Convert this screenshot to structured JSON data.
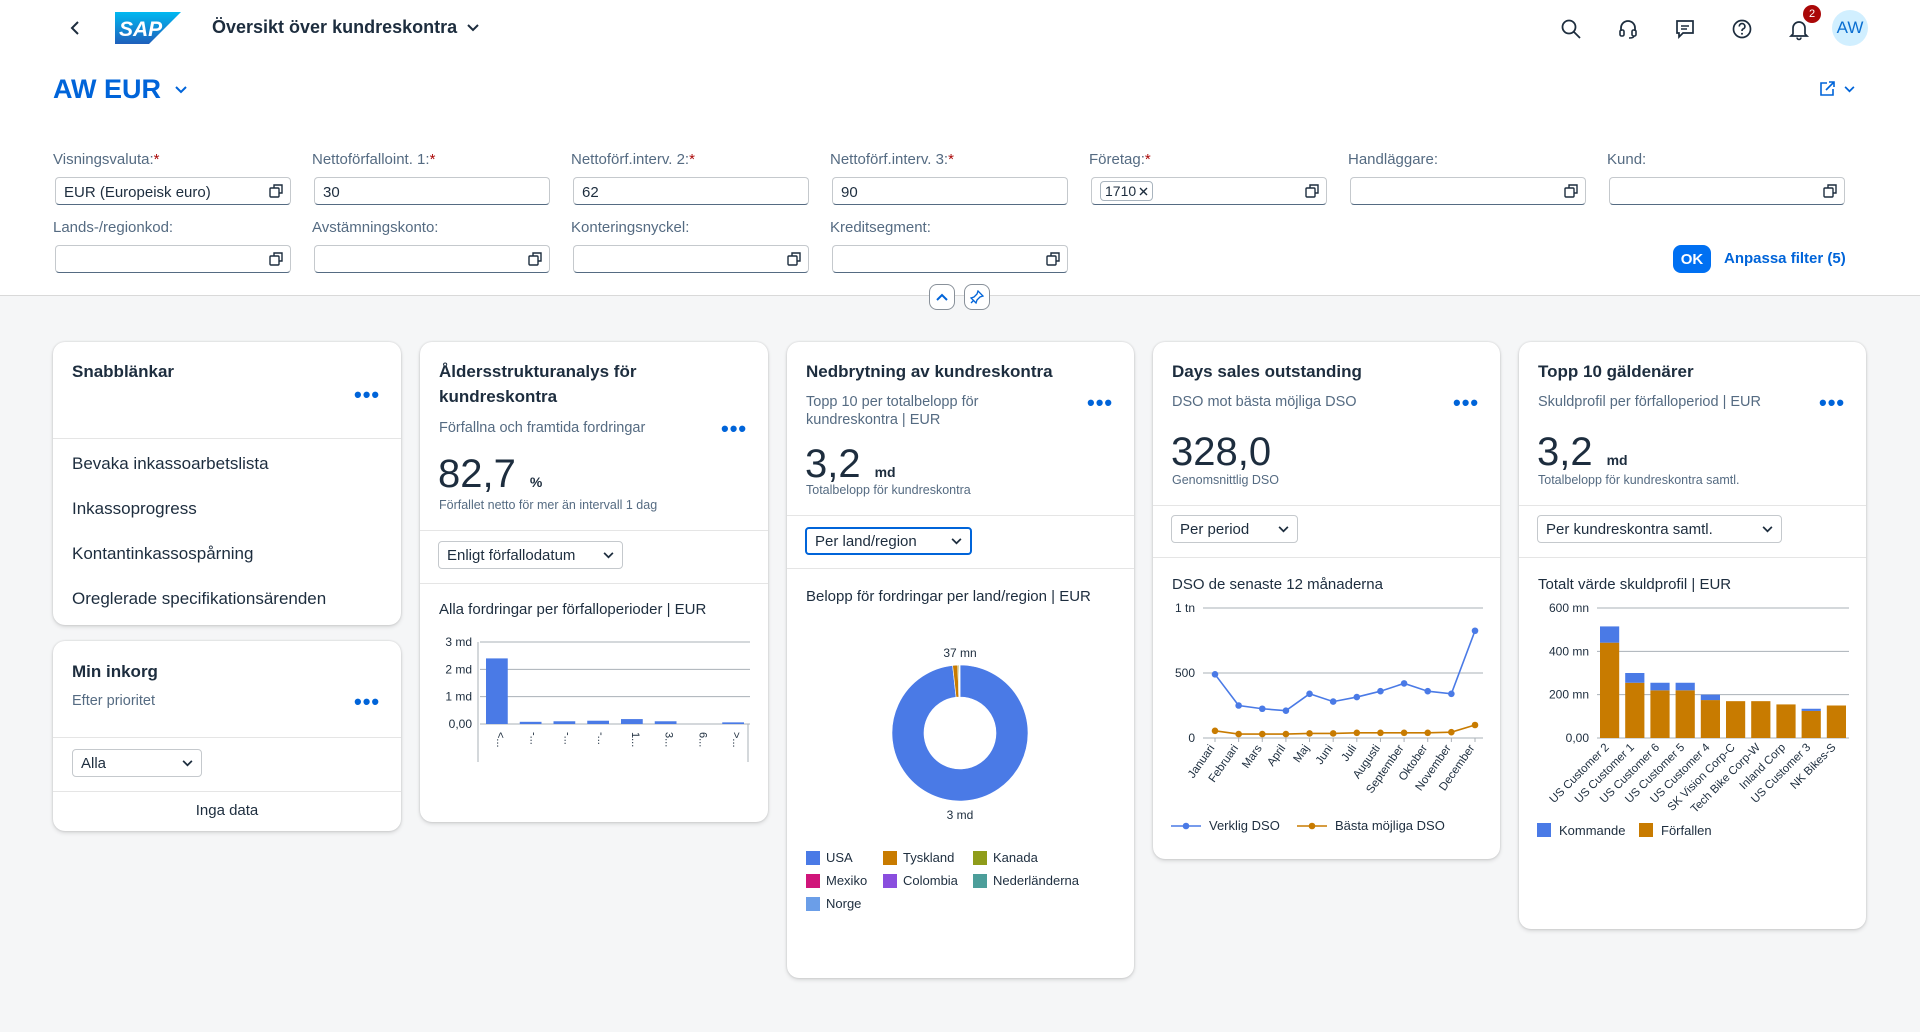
{
  "shell": {
    "app_title": "Översikt över kundreskontra",
    "logo": "SAP",
    "notification_count": "2",
    "avatar": "AW"
  },
  "variant": {
    "title": "AW EUR"
  },
  "filters": {
    "display_currency": {
      "label": "Visningsvaluta:",
      "value": "EUR (Europeisk euro)"
    },
    "net_due_interval1": {
      "label": "Nettoförfalloint. 1:",
      "value": "30"
    },
    "net_due_interval2": {
      "label": "Nettoförf.interv. 2:",
      "value": "62"
    },
    "net_due_interval3": {
      "label": "Nettoförf.interv. 3:",
      "value": "90"
    },
    "company": {
      "label": "Företag:",
      "token": "1710"
    },
    "processor": {
      "label": "Handläggare:",
      "value": ""
    },
    "customer": {
      "label": "Kund:",
      "value": ""
    },
    "country": {
      "label": "Lands-/regionkod:",
      "value": ""
    },
    "recon_account": {
      "label": "Avstämningskonto:",
      "value": ""
    },
    "posting_key": {
      "label": "Konteringsnyckel:",
      "value": ""
    },
    "credit_segment": {
      "label": "Kreditsegment:",
      "value": ""
    },
    "ok_label": "OK",
    "adapt_label": "Anpassa filter (5)",
    "required_mark": "*"
  },
  "cards": {
    "quicklinks": {
      "title": "Snabblänkar",
      "links": [
        "Bevaka inkassoarbetslista",
        "Inkassoprogress",
        "Kontantinkassospårning",
        "Oreglerade specifikationsärenden"
      ]
    },
    "inbox": {
      "title": "Min inkorg",
      "subtitle": "Efter prioritet",
      "select": "Alla",
      "empty": "Inga data"
    },
    "aging": {
      "title": "Åldersstrukturanalys för kundreskontra",
      "subtitle": "Förfallna och framtida fordringar",
      "kpi": "82,7",
      "kpi_unit": "%",
      "kpi_desc": "Förfallet netto för mer än intervall 1 dag",
      "select": "Enligt förfallodatum",
      "chart_title": "Alla fordringar per förfalloperioder | EUR"
    },
    "breakdown": {
      "title": "Nedbrytning av kundreskontra",
      "subtitle": "Topp 10 per totalbelopp för kundreskontra | EUR",
      "kpi": "3,2",
      "kpi_unit": "md",
      "kpi_desc": "Totalbelopp för kundreskontra",
      "select": "Per land/region",
      "chart_title": "Belopp för fordringar per land/region | EUR"
    },
    "dso": {
      "title": "Days sales outstanding",
      "subtitle": "DSO mot bästa möjliga DSO",
      "kpi": "328,0",
      "kpi_desc": "Genomsnittlig DSO",
      "select": "Per period",
      "chart_title": "DSO de senaste 12 månaderna"
    },
    "debtors": {
      "title": "Topp 10 gäldenärer",
      "subtitle": "Skuldprofil per förfalloperiod | EUR",
      "kpi": "3,2",
      "kpi_unit": "md",
      "kpi_desc": "Totalbelopp för kundreskontra samtl.",
      "select": "Per kundreskontra samtl.",
      "chart_title": "Totalt värde skuldprofil | EUR"
    }
  },
  "chart_data": [
    {
      "type": "bar",
      "title": "Alla fordringar per förfalloperioder | EUR",
      "categories": [
        "<...",
        "-...",
        "-...",
        "-...",
        "1...",
        "3...",
        "6...",
        ">..."
      ],
      "values": [
        2.4,
        0.08,
        0.1,
        0.12,
        0.18,
        0.1,
        0.0,
        0.06
      ],
      "ylim": [
        0,
        3
      ],
      "yticks": [
        "0,00",
        "1 md",
        "2 md",
        "3 md"
      ],
      "color": "#4a7ae6"
    },
    {
      "type": "pie",
      "title": "Belopp för fordringar per land/region | EUR",
      "series": [
        {
          "name": "USA",
          "value": 3000,
          "color": "#4a7ae6"
        },
        {
          "name": "Tyskland",
          "value": 37,
          "color": "#c87b00"
        },
        {
          "name": "Kanada",
          "value": 8,
          "color": "#8f9c1a"
        },
        {
          "name": "Mexiko",
          "value": 2,
          "color": "#d0157a"
        },
        {
          "name": "Colombia",
          "value": 2,
          "color": "#8a4ede"
        },
        {
          "name": "Nederländerna",
          "value": 2,
          "color": "#4c9e9a"
        },
        {
          "name": "Norge",
          "value": 2,
          "color": "#6b9ee8"
        }
      ],
      "labels": {
        "top": "37 mn",
        "bottom": "3 md"
      }
    },
    {
      "type": "line",
      "title": "DSO de senaste 12 månaderna",
      "categories": [
        "Januari",
        "Februari",
        "Mars",
        "April",
        "Maj",
        "Juni",
        "Juli",
        "Augusti",
        "September",
        "Oktober",
        "November",
        "December"
      ],
      "series": [
        {
          "name": "Verklig DSO",
          "values": [
            490,
            250,
            225,
            210,
            340,
            280,
            315,
            360,
            420,
            360,
            340,
            825
          ],
          "color": "#4a7ae6"
        },
        {
          "name": "Bästa möjliga DSO",
          "values": [
            55,
            30,
            30,
            30,
            35,
            35,
            40,
            40,
            40,
            40,
            45,
            100
          ],
          "color": "#c87b00"
        }
      ],
      "ylim": [
        0,
        1000
      ],
      "yticks": [
        "0",
        "500",
        "1 tn"
      ]
    },
    {
      "type": "bar",
      "stacked": true,
      "title": "Totalt värde skuldprofil | EUR",
      "categories": [
        "US Customer 2",
        "US Customer 1",
        "US Customer 6",
        "US Customer 5",
        "US Customer 4",
        "SK Vision Corp-C",
        "Tech Bike Corp-W",
        "Inland Corp",
        "US Customer 3",
        "NK Bikes-S"
      ],
      "series": [
        {
          "name": "Kommande",
          "values": [
            75,
            45,
            35,
            35,
            25,
            0,
            0,
            0,
            10,
            0
          ],
          "color": "#4a7ae6"
        },
        {
          "name": "Förfallen",
          "values": [
            440,
            255,
            220,
            220,
            175,
            170,
            170,
            155,
            125,
            150
          ],
          "color": "#c87b00"
        }
      ],
      "ylim": [
        0,
        600
      ],
      "yticks": [
        "0,00",
        "200 mn",
        "400 mn",
        "600 mn"
      ]
    }
  ]
}
